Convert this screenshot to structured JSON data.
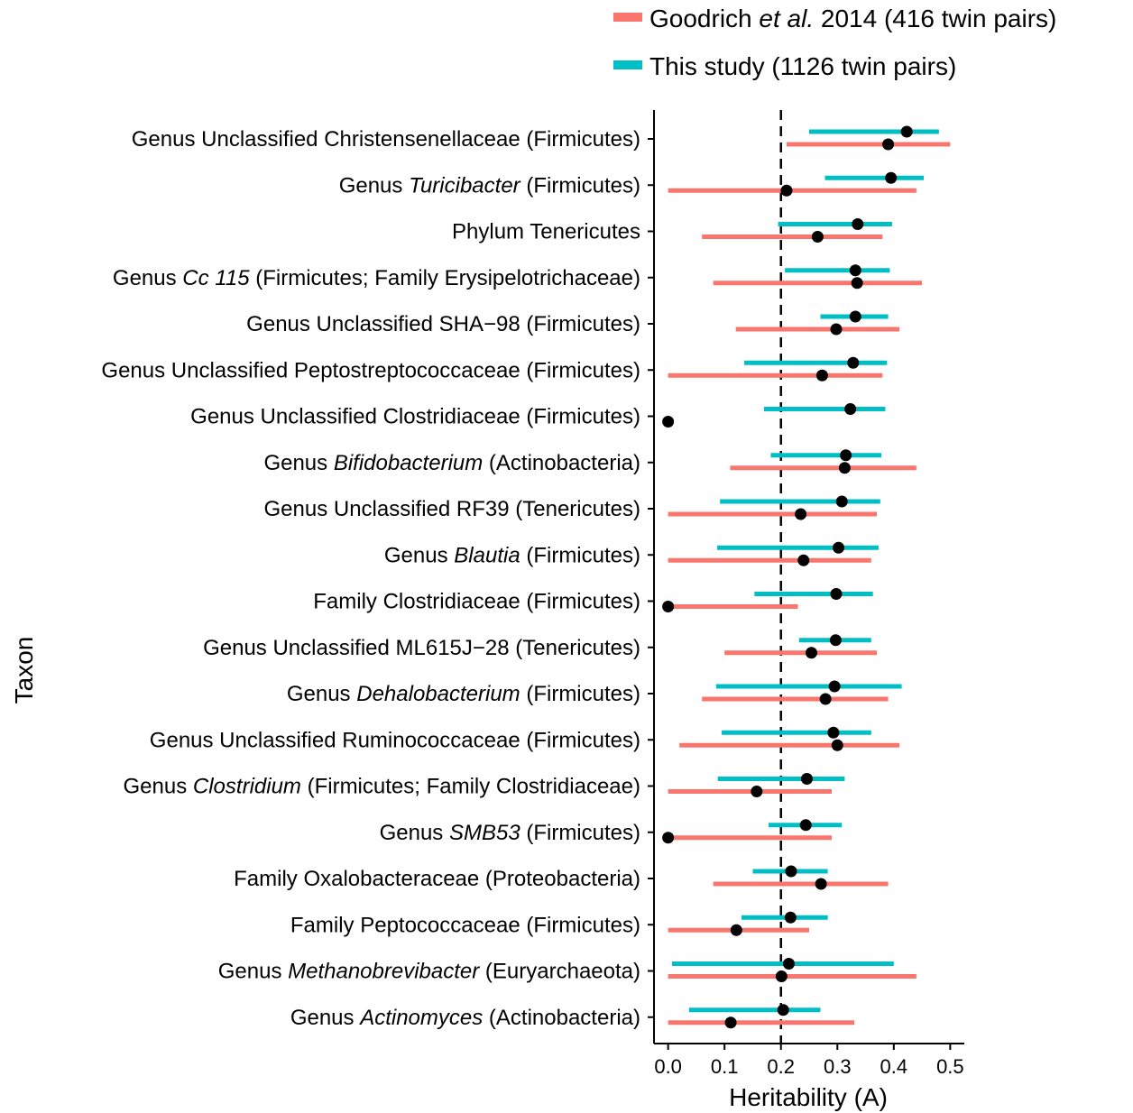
{
  "chart_data": {
    "type": "scatter",
    "subtype": "dot-and-interval",
    "xlabel": "Heritability (A)",
    "ylabel": "Taxon",
    "xlim": [
      -0.025,
      0.525
    ],
    "xticks": [
      "0.0",
      "0.1",
      "0.2",
      "0.3",
      "0.4",
      "0.5"
    ],
    "reference_line": {
      "x": 0.2,
      "style": "dashed"
    },
    "legend": {
      "placement": "top-right",
      "entries": [
        {
          "key": "goodrich",
          "color": "#F8766D",
          "parts": [
            {
              "text": "Goodrich ",
              "italic": false
            },
            {
              "text": "et al.",
              "italic": true
            },
            {
              "text": " 2014 (416 twin pairs)",
              "italic": false
            }
          ]
        },
        {
          "key": "this",
          "color": "#00BFC4",
          "parts": [
            {
              "text": "This study (1126 twin pairs)",
              "italic": false
            }
          ]
        }
      ]
    },
    "series": [
      {
        "name": "Goodrich et al. 2014 (416 twin pairs)",
        "key": "goodrich",
        "color": "#F8766D"
      },
      {
        "name": "This study (1126 twin pairs)",
        "key": "this",
        "color": "#00BFC4"
      }
    ],
    "rows": [
      {
        "parts": [
          {
            "text": "Genus Unclassified Christensenellaceae (Firmicutes)",
            "italic": false
          }
        ],
        "this": {
          "est": 0.423,
          "lo": 0.25,
          "hi": 0.48
        },
        "goodrich": {
          "est": 0.39,
          "lo": 0.21,
          "hi": 0.5
        }
      },
      {
        "parts": [
          {
            "text": "Genus ",
            "italic": false
          },
          {
            "text": "Turicibacter",
            "italic": true
          },
          {
            "text": " (Firmicutes)",
            "italic": false
          }
        ],
        "this": {
          "est": 0.395,
          "lo": 0.278,
          "hi": 0.453
        },
        "goodrich": {
          "est": 0.21,
          "lo": 0.0,
          "hi": 0.44
        }
      },
      {
        "parts": [
          {
            "text": "Phylum Tenericutes",
            "italic": false
          }
        ],
        "this": {
          "est": 0.336,
          "lo": 0.195,
          "hi": 0.397
        },
        "goodrich": {
          "est": 0.265,
          "lo": 0.06,
          "hi": 0.38
        }
      },
      {
        "parts": [
          {
            "text": "Genus ",
            "italic": false
          },
          {
            "text": "Cc 115",
            "italic": true
          },
          {
            "text": " (Firmicutes; Family Erysipelotrichaceae)",
            "italic": false
          }
        ],
        "this": {
          "est": 0.332,
          "lo": 0.207,
          "hi": 0.393
        },
        "goodrich": {
          "est": 0.335,
          "lo": 0.08,
          "hi": 0.45
        }
      },
      {
        "parts": [
          {
            "text": "Genus Unclassified SHA−98 (Firmicutes)",
            "italic": false
          }
        ],
        "this": {
          "est": 0.332,
          "lo": 0.27,
          "hi": 0.39
        },
        "goodrich": {
          "est": 0.298,
          "lo": 0.12,
          "hi": 0.41
        }
      },
      {
        "parts": [
          {
            "text": "Genus Unclassified Peptostreptococcaceae (Firmicutes)",
            "italic": false
          }
        ],
        "this": {
          "est": 0.328,
          "lo": 0.135,
          "hi": 0.388
        },
        "goodrich": {
          "est": 0.273,
          "lo": 0.0,
          "hi": 0.38
        }
      },
      {
        "parts": [
          {
            "text": "Genus Unclassified Clostridiaceae (Firmicutes)",
            "italic": false
          }
        ],
        "this": {
          "est": 0.323,
          "lo": 0.17,
          "hi": 0.385
        },
        "goodrich": {
          "est": 0.0,
          "lo": 0.0,
          "hi": 0.0
        }
      },
      {
        "parts": [
          {
            "text": "Genus ",
            "italic": false
          },
          {
            "text": "Bifidobacterium",
            "italic": true
          },
          {
            "text": " (Actinobacteria)",
            "italic": false
          }
        ],
        "this": {
          "est": 0.315,
          "lo": 0.182,
          "hi": 0.378
        },
        "goodrich": {
          "est": 0.313,
          "lo": 0.11,
          "hi": 0.44
        }
      },
      {
        "parts": [
          {
            "text": "Genus Unclassified RF39 (Tenericutes)",
            "italic": false
          }
        ],
        "this": {
          "est": 0.308,
          "lo": 0.092,
          "hi": 0.376
        },
        "goodrich": {
          "est": 0.235,
          "lo": 0.0,
          "hi": 0.37
        }
      },
      {
        "parts": [
          {
            "text": "Genus ",
            "italic": false
          },
          {
            "text": "Blautia",
            "italic": true
          },
          {
            "text": " (Firmicutes)",
            "italic": false
          }
        ],
        "this": {
          "est": 0.302,
          "lo": 0.087,
          "hi": 0.373
        },
        "goodrich": {
          "est": 0.24,
          "lo": 0.0,
          "hi": 0.36
        }
      },
      {
        "parts": [
          {
            "text": "Family Clostridiaceae (Firmicutes)",
            "italic": false
          }
        ],
        "this": {
          "est": 0.298,
          "lo": 0.153,
          "hi": 0.363
        },
        "goodrich": {
          "est": 0.0,
          "lo": 0.0,
          "hi": 0.23
        }
      },
      {
        "parts": [
          {
            "text": "Genus Unclassified ML615J−28 (Tenericutes)",
            "italic": false
          }
        ],
        "this": {
          "est": 0.297,
          "lo": 0.232,
          "hi": 0.36
        },
        "goodrich": {
          "est": 0.254,
          "lo": 0.1,
          "hi": 0.37
        }
      },
      {
        "parts": [
          {
            "text": "Genus ",
            "italic": false
          },
          {
            "text": "Dehalobacterium",
            "italic": true
          },
          {
            "text": " (Firmicutes)",
            "italic": false
          }
        ],
        "this": {
          "est": 0.295,
          "lo": 0.085,
          "hi": 0.414
        },
        "goodrich": {
          "est": 0.279,
          "lo": 0.06,
          "hi": 0.39
        }
      },
      {
        "parts": [
          {
            "text": "Genus Unclassified Ruminococcaceae (Firmicutes)",
            "italic": false
          }
        ],
        "this": {
          "est": 0.293,
          "lo": 0.095,
          "hi": 0.36
        },
        "goodrich": {
          "est": 0.3,
          "lo": 0.02,
          "hi": 0.41
        }
      },
      {
        "parts": [
          {
            "text": "Genus ",
            "italic": false
          },
          {
            "text": "Clostridium",
            "italic": true
          },
          {
            "text": " (Firmicutes; Family Clostridiaceae)",
            "italic": false
          }
        ],
        "this": {
          "est": 0.246,
          "lo": 0.088,
          "hi": 0.313
        },
        "goodrich": {
          "est": 0.157,
          "lo": 0.0,
          "hi": 0.29
        }
      },
      {
        "parts": [
          {
            "text": "Genus ",
            "italic": false
          },
          {
            "text": "SMB53",
            "italic": true
          },
          {
            "text": " (Firmicutes)",
            "italic": false
          }
        ],
        "this": {
          "est": 0.244,
          "lo": 0.178,
          "hi": 0.308
        },
        "goodrich": {
          "est": 0.0,
          "lo": 0.0,
          "hi": 0.29
        }
      },
      {
        "parts": [
          {
            "text": "Family Oxalobacteraceae (Proteobacteria)",
            "italic": false
          }
        ],
        "this": {
          "est": 0.218,
          "lo": 0.15,
          "hi": 0.283
        },
        "goodrich": {
          "est": 0.271,
          "lo": 0.08,
          "hi": 0.39
        }
      },
      {
        "parts": [
          {
            "text": "Family Peptococcaceae (Firmicutes)",
            "italic": false
          }
        ],
        "this": {
          "est": 0.217,
          "lo": 0.13,
          "hi": 0.283
        },
        "goodrich": {
          "est": 0.121,
          "lo": 0.0,
          "hi": 0.25
        }
      },
      {
        "parts": [
          {
            "text": "Genus ",
            "italic": false
          },
          {
            "text": "Methanobrevibacter",
            "italic": true
          },
          {
            "text": " (Euryarchaeota)",
            "italic": false
          }
        ],
        "this": {
          "est": 0.214,
          "lo": 0.007,
          "hi": 0.4
        },
        "goodrich": {
          "est": 0.201,
          "lo": 0.0,
          "hi": 0.44
        }
      },
      {
        "parts": [
          {
            "text": "Genus ",
            "italic": false
          },
          {
            "text": "Actinomyces",
            "italic": true
          },
          {
            "text": " (Actinobacteria)",
            "italic": false
          }
        ],
        "this": {
          "est": 0.204,
          "lo": 0.037,
          "hi": 0.27
        },
        "goodrich": {
          "est": 0.111,
          "lo": 0.0,
          "hi": 0.33
        }
      }
    ]
  }
}
